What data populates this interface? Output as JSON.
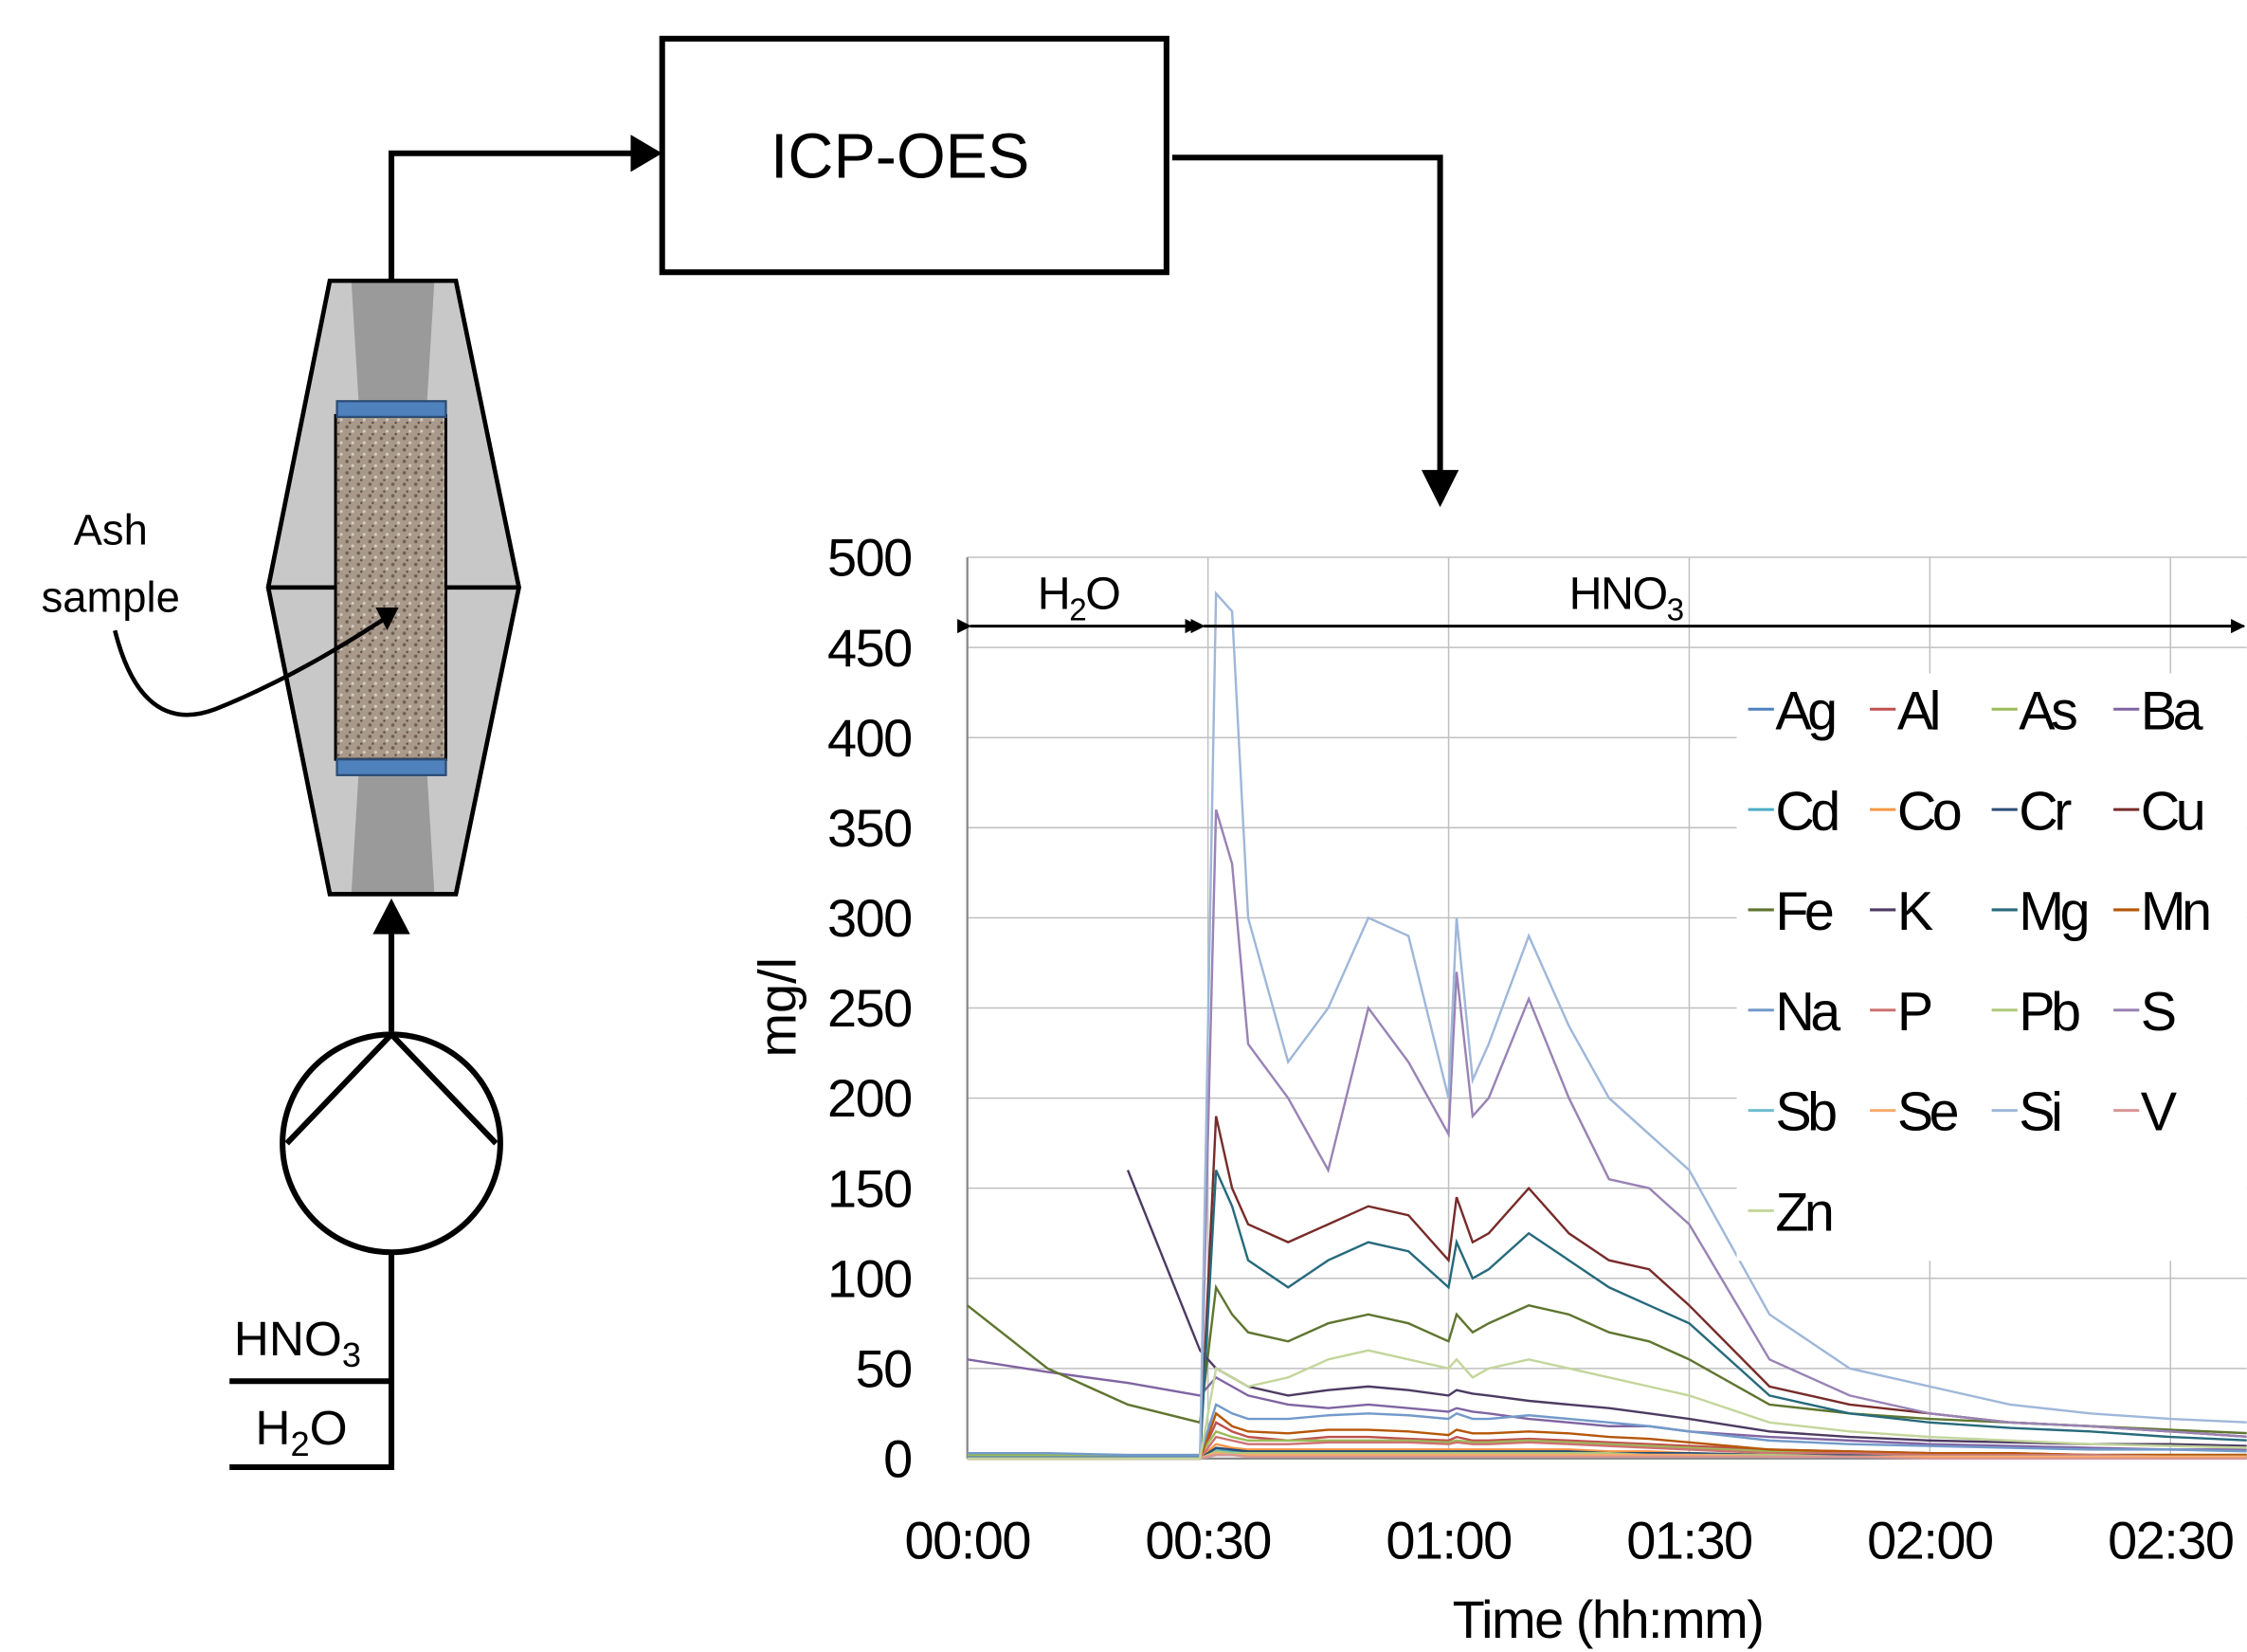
{
  "diagram": {
    "analyzer": "ICP-OES",
    "sample_label": [
      "Ash",
      "sample"
    ],
    "inlets": [
      {
        "main": "HNO",
        "sub": "3"
      },
      {
        "main": "H",
        "sub": "2",
        "rest": "O"
      }
    ]
  },
  "chart_data": {
    "type": "line",
    "ylabel": "mg/l",
    "xlabel": "Time (hh:mm)",
    "annotations": [
      {
        "main": "H",
        "sub": "2",
        "rest": "O"
      },
      {
        "main": "HNO",
        "sub": "3"
      }
    ],
    "x": [
      0,
      10,
      20,
      29,
      31,
      33,
      35,
      40,
      45,
      50,
      55,
      60,
      61,
      63,
      65,
      70,
      75,
      80,
      85,
      90,
      100,
      110,
      120,
      130,
      140,
      150,
      160
    ],
    "xlim": [
      0,
      160
    ],
    "xticks": [
      {
        "value": 0,
        "label": "00:00"
      },
      {
        "value": 30,
        "label": "00:30"
      },
      {
        "value": 60,
        "label": "01:00"
      },
      {
        "value": 90,
        "label": "01:30"
      },
      {
        "value": 120,
        "label": "02:00"
      },
      {
        "value": 150,
        "label": "02:30"
      }
    ],
    "ylim": [
      0,
      500
    ],
    "yticks": [
      0,
      50,
      100,
      150,
      200,
      250,
      300,
      350,
      400,
      450,
      500
    ],
    "grid": true,
    "series": [
      {
        "name": "Ag",
        "color": "#4F81BD",
        "values": [
          1,
          1,
          1,
          1,
          3,
          2,
          2,
          2,
          2,
          2,
          2,
          2,
          2,
          2,
          2,
          2,
          2,
          2,
          2,
          2,
          1,
          1,
          1,
          1,
          1,
          1,
          1
        ]
      },
      {
        "name": "Al",
        "color": "#C0504D",
        "values": [
          0,
          0,
          0,
          0,
          20,
          15,
          12,
          10,
          12,
          12,
          11,
          10,
          12,
          10,
          10,
          11,
          10,
          9,
          8,
          7,
          5,
          4,
          3,
          3,
          2,
          2,
          2
        ]
      },
      {
        "name": "As",
        "color": "#9BBB59",
        "values": [
          2,
          2,
          2,
          2,
          15,
          12,
          10,
          10,
          10,
          10,
          10,
          9,
          10,
          9,
          9,
          10,
          9,
          8,
          7,
          6,
          4,
          3,
          3,
          2,
          2,
          2,
          2
        ]
      },
      {
        "name": "Ba",
        "color": "#8064A2",
        "values": [
          55,
          48,
          42,
          35,
          45,
          40,
          35,
          30,
          28,
          30,
          28,
          26,
          28,
          26,
          25,
          22,
          20,
          18,
          18,
          15,
          12,
          10,
          8,
          7,
          6,
          5,
          5
        ]
      },
      {
        "name": "Cd",
        "color": "#4BACC6",
        "values": [
          0,
          0,
          0,
          0,
          5,
          4,
          3,
          3,
          3,
          3,
          3,
          3,
          3,
          3,
          3,
          3,
          3,
          3,
          2,
          2,
          2,
          1,
          1,
          1,
          1,
          1,
          1
        ]
      },
      {
        "name": "Co",
        "color": "#F79646",
        "values": [
          0,
          0,
          0,
          0,
          8,
          6,
          5,
          5,
          5,
          5,
          5,
          5,
          5,
          5,
          5,
          5,
          5,
          4,
          4,
          3,
          2,
          2,
          1,
          1,
          1,
          1,
          1
        ]
      },
      {
        "name": "Cr",
        "color": "#2C4D75",
        "values": [
          0,
          0,
          0,
          0,
          6,
          5,
          4,
          4,
          4,
          4,
          4,
          4,
          4,
          4,
          4,
          4,
          4,
          3,
          3,
          3,
          2,
          2,
          1,
          1,
          1,
          1,
          1
        ]
      },
      {
        "name": "Cu",
        "color": "#772C2A",
        "values": [
          0,
          0,
          0,
          0,
          190,
          150,
          130,
          120,
          130,
          140,
          135,
          110,
          145,
          120,
          125,
          150,
          125,
          110,
          105,
          85,
          40,
          30,
          25,
          20,
          18,
          15,
          12
        ]
      },
      {
        "name": "Fe",
        "color": "#5F7530",
        "values": [
          85,
          50,
          30,
          20,
          95,
          80,
          70,
          65,
          75,
          80,
          75,
          65,
          80,
          70,
          75,
          85,
          80,
          70,
          65,
          55,
          30,
          25,
          22,
          20,
          18,
          16,
          14
        ]
      },
      {
        "name": "K",
        "color": "#4D3B62",
        "values": [
          null,
          null,
          160,
          60,
          50,
          45,
          40,
          35,
          38,
          40,
          38,
          35,
          38,
          36,
          35,
          32,
          30,
          28,
          25,
          22,
          15,
          12,
          10,
          9,
          8,
          8,
          7
        ]
      },
      {
        "name": "Mg",
        "color": "#276A7C",
        "values": [
          0,
          0,
          0,
          0,
          160,
          140,
          110,
          95,
          110,
          120,
          115,
          95,
          120,
          100,
          105,
          125,
          110,
          95,
          85,
          75,
          35,
          25,
          20,
          17,
          15,
          12,
          10
        ]
      },
      {
        "name": "Mn",
        "color": "#B65708",
        "values": [
          0,
          0,
          0,
          0,
          25,
          18,
          15,
          14,
          16,
          16,
          15,
          13,
          16,
          14,
          14,
          15,
          14,
          12,
          11,
          9,
          5,
          4,
          3,
          3,
          2,
          2,
          2
        ]
      },
      {
        "name": "Na",
        "color": "#729ACA",
        "values": [
          3,
          3,
          2,
          2,
          30,
          25,
          22,
          22,
          24,
          25,
          24,
          22,
          25,
          22,
          22,
          24,
          22,
          20,
          18,
          15,
          10,
          8,
          7,
          6,
          5,
          5,
          4
        ]
      },
      {
        "name": "P",
        "color": "#CD7371",
        "values": [
          0,
          0,
          0,
          0,
          12,
          10,
          8,
          8,
          9,
          9,
          9,
          8,
          9,
          8,
          8,
          9,
          8,
          7,
          6,
          5,
          3,
          3,
          2,
          2,
          2,
          1,
          1
        ]
      },
      {
        "name": "Pb",
        "color": "#AFC97A",
        "values": [
          0,
          0,
          0,
          0,
          4,
          3,
          3,
          3,
          3,
          3,
          3,
          3,
          3,
          3,
          3,
          3,
          3,
          3,
          2,
          2,
          2,
          1,
          1,
          1,
          1,
          1,
          1
        ]
      },
      {
        "name": "S",
        "color": "#9983B5",
        "values": [
          null,
          null,
          null,
          0,
          360,
          330,
          230,
          200,
          160,
          250,
          220,
          180,
          270,
          190,
          200,
          255,
          200,
          155,
          150,
          130,
          55,
          35,
          25,
          20,
          18,
          15,
          12
        ]
      },
      {
        "name": "Sb",
        "color": "#6FBDD1",
        "values": [
          0,
          0,
          0,
          0,
          2,
          2,
          2,
          2,
          2,
          2,
          2,
          2,
          2,
          2,
          2,
          2,
          2,
          2,
          2,
          2,
          1,
          1,
          1,
          1,
          1,
          1,
          1
        ]
      },
      {
        "name": "Se",
        "color": "#F9AB6B",
        "values": [
          0,
          0,
          0,
          0,
          3,
          2,
          2,
          2,
          2,
          2,
          2,
          2,
          2,
          2,
          2,
          2,
          2,
          2,
          2,
          2,
          1,
          1,
          1,
          1,
          1,
          1,
          1
        ]
      },
      {
        "name": "Si",
        "color": "#9FB7D9",
        "values": [
          null,
          null,
          null,
          0,
          480,
          470,
          300,
          220,
          250,
          300,
          290,
          200,
          300,
          210,
          230,
          290,
          240,
          200,
          180,
          160,
          80,
          50,
          40,
          30,
          25,
          22,
          20
        ]
      },
      {
        "name": "V",
        "color": "#D99694",
        "values": [
          0,
          0,
          0,
          0,
          2,
          2,
          1,
          1,
          1,
          1,
          1,
          1,
          1,
          1,
          1,
          1,
          1,
          1,
          1,
          1,
          1,
          1,
          0,
          0,
          0,
          0,
          0
        ]
      },
      {
        "name": "Zn",
        "color": "#C3D69B",
        "values": [
          0,
          0,
          0,
          0,
          50,
          45,
          40,
          45,
          55,
          60,
          55,
          50,
          55,
          45,
          50,
          55,
          50,
          45,
          40,
          35,
          20,
          15,
          12,
          10,
          8,
          7,
          6
        ]
      }
    ]
  }
}
